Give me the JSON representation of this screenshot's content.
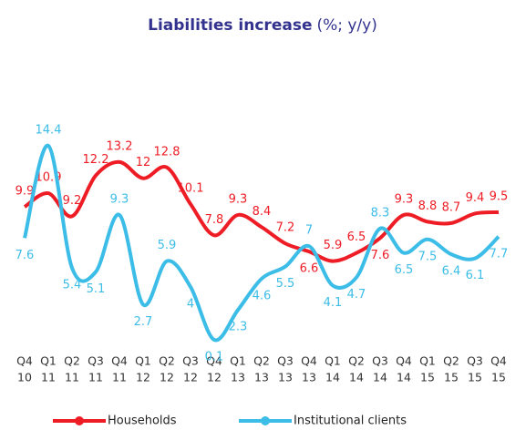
{
  "chart_data": {
    "type": "line",
    "title": "Liabilities increase",
    "subtitle": "(%; y/y)",
    "categories": [
      [
        "Q4",
        "10"
      ],
      [
        "Q1",
        "11"
      ],
      [
        "Q2",
        "11"
      ],
      [
        "Q3",
        "11"
      ],
      [
        "Q4",
        "11"
      ],
      [
        "Q1",
        "12"
      ],
      [
        "Q2",
        "12"
      ],
      [
        "Q3",
        "12"
      ],
      [
        "Q4",
        "12"
      ],
      [
        "Q1",
        "13"
      ],
      [
        "Q2",
        "13"
      ],
      [
        "Q3",
        "13"
      ],
      [
        "Q4",
        "13"
      ],
      [
        "Q1",
        "14"
      ],
      [
        "Q2",
        "14"
      ],
      [
        "Q3",
        "14"
      ],
      [
        "Q4",
        "14"
      ],
      [
        "Q1",
        "15"
      ],
      [
        "Q2",
        "15"
      ],
      [
        "Q3",
        "15"
      ],
      [
        "Q4",
        "15"
      ]
    ],
    "series": [
      {
        "name": "Households",
        "color": "#ee1c25",
        "values": [
          9.9,
          10.9,
          9.2,
          12.2,
          13.2,
          12.0,
          12.8,
          10.1,
          7.8,
          9.3,
          8.4,
          7.2,
          6.6,
          5.9,
          6.5,
          7.6,
          9.3,
          8.8,
          8.7,
          9.4,
          9.5
        ]
      },
      {
        "name": "Institutional clients",
        "color": "#3cbde8",
        "values": [
          7.6,
          14.4,
          5.4,
          5.1,
          9.3,
          2.7,
          5.9,
          4.0,
          0.1,
          2.3,
          4.6,
          5.5,
          7.0,
          4.1,
          4.7,
          8.3,
          6.5,
          7.5,
          6.4,
          6.1,
          7.7
        ]
      }
    ],
    "ylim": [
      0,
      15
    ],
    "legend": "bottom"
  }
}
